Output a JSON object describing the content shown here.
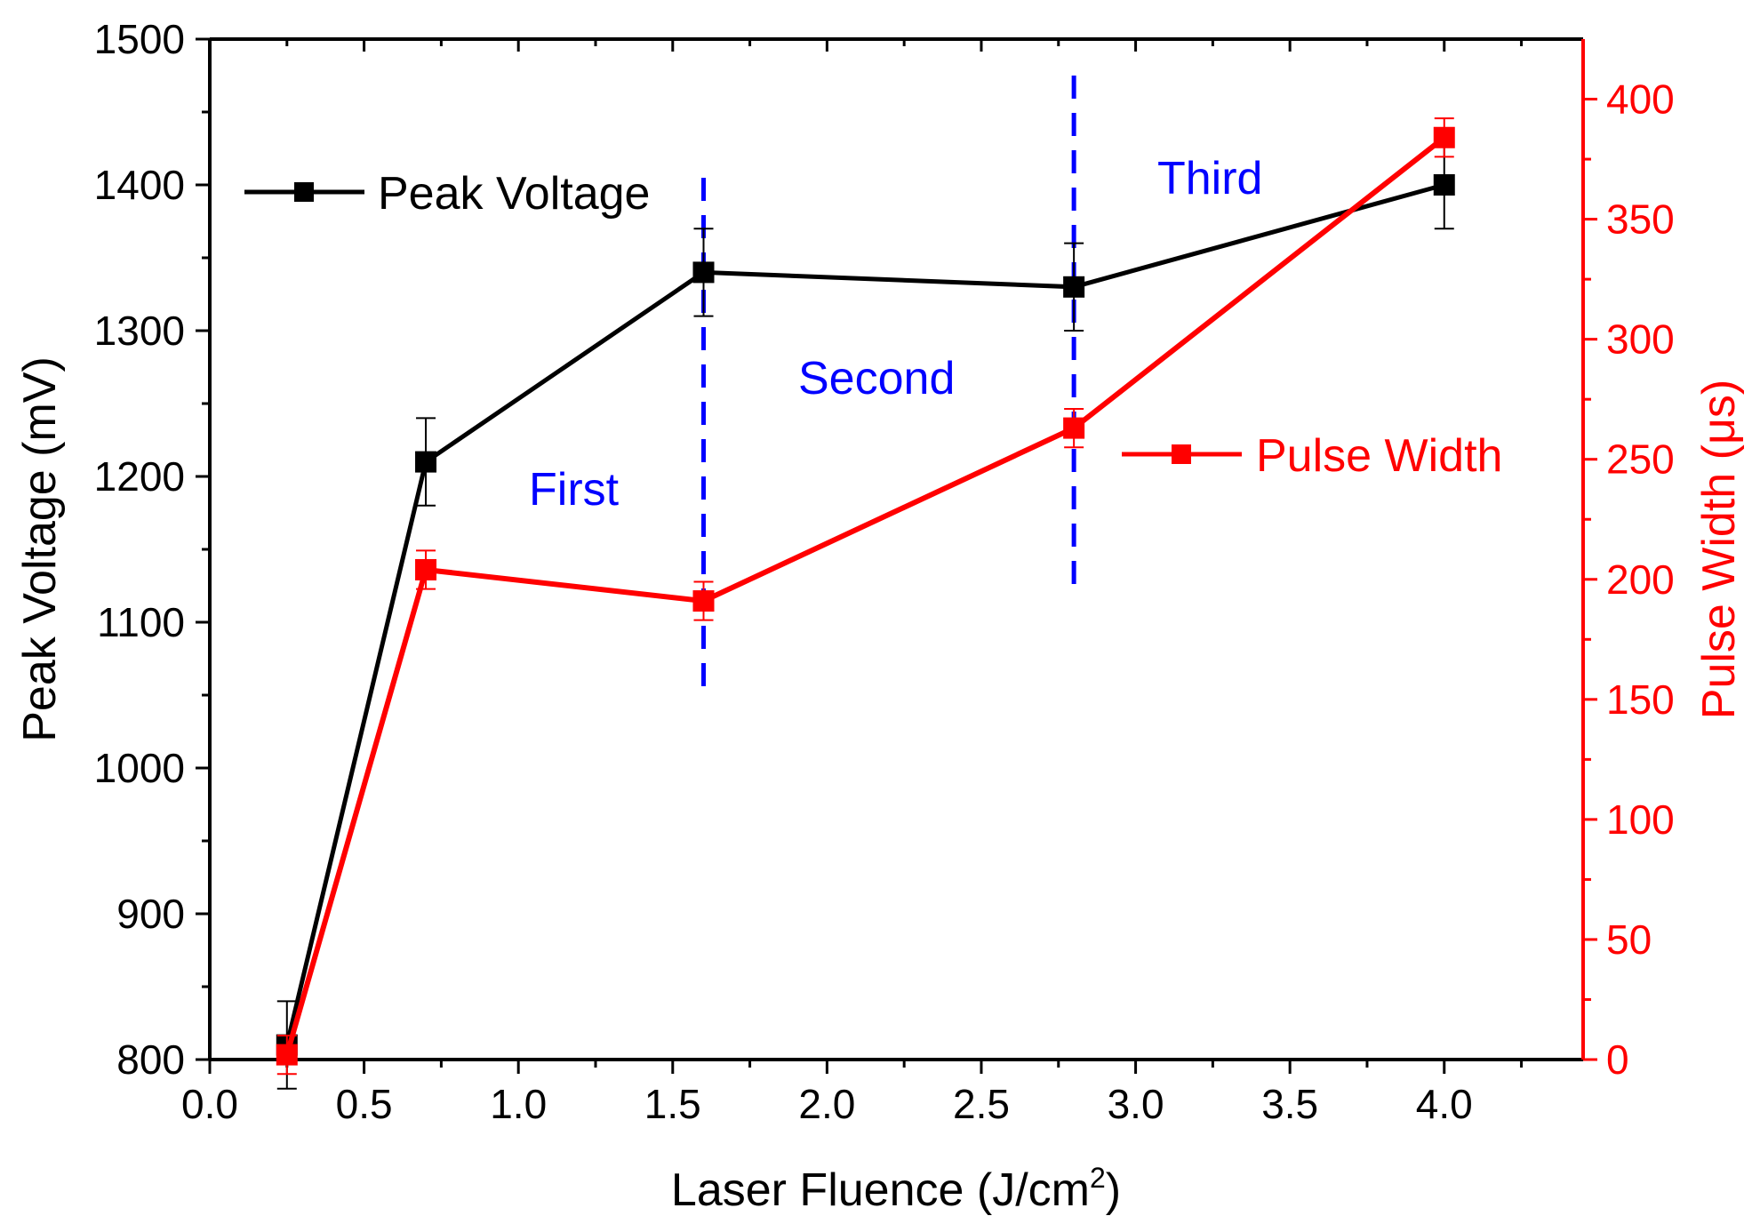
{
  "chart_data": {
    "type": "line",
    "title": "",
    "xlabel": "Laser Fluence  (J/cm",
    "xlabel_sup": "2",
    "xlabel_end": ")",
    "ylabel": "Peak Voltage (mV)",
    "y2label": "Pulse Width (μs)",
    "xlim": [
      0.0,
      4.45
    ],
    "ylim": [
      800,
      1500
    ],
    "y2lim": [
      0,
      425
    ],
    "x_ticks": [
      "0.0",
      "0.5",
      "1.0",
      "1.5",
      "2.0",
      "2.5",
      "3.0",
      "3.5",
      "4.0"
    ],
    "y_ticks": [
      "800",
      "900",
      "1000",
      "1100",
      "1200",
      "1300",
      "1400",
      "1500"
    ],
    "y2_ticks": [
      "0",
      "50",
      "100",
      "150",
      "200",
      "250",
      "300",
      "350",
      "400"
    ],
    "colors": {
      "axis": "#000000",
      "secondary": "#ff0000",
      "divider": "#0000ff"
    },
    "series": [
      {
        "name": "Peak Voltage",
        "axis": "left",
        "color": "#000000",
        "x": [
          0.25,
          0.7,
          1.6,
          2.8,
          4.0
        ],
        "y": [
          810,
          1210,
          1340,
          1330,
          1400
        ],
        "err": [
          30,
          30,
          30,
          30,
          30
        ]
      },
      {
        "name": "Pulse Width",
        "axis": "right",
        "color": "#ff0000",
        "x": [
          0.25,
          0.7,
          1.6,
          2.8,
          4.0
        ],
        "y": [
          2,
          204,
          191,
          263,
          384
        ],
        "err": [
          8,
          8,
          8,
          8,
          8
        ]
      }
    ],
    "dividers": [
      1.6,
      2.8
    ],
    "annotations": [
      "First",
      "Second",
      "Third"
    ]
  }
}
